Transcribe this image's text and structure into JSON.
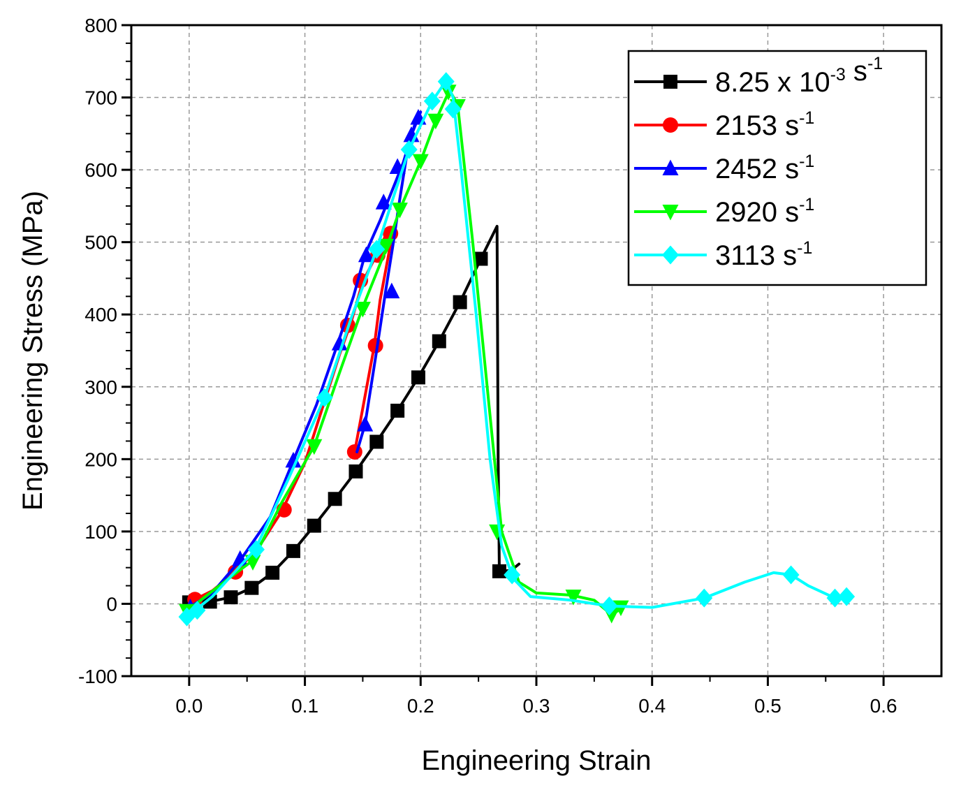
{
  "chart_data": {
    "type": "line",
    "xlabel": "Engineering Strain",
    "ylabel": "Engineering Stress (MPa)",
    "xlim": [
      -0.05,
      0.65
    ],
    "ylim": [
      -100,
      800
    ],
    "x_ticks": [
      0.0,
      0.1,
      0.2,
      0.3,
      0.4,
      0.5,
      0.6
    ],
    "x_tick_labels": [
      "0.0",
      "0.1",
      "0.2",
      "0.3",
      "0.4",
      "0.5",
      "0.6"
    ],
    "y_ticks": [
      -100,
      0,
      100,
      200,
      300,
      400,
      500,
      600,
      700,
      800
    ],
    "y_tick_labels": [
      "-100",
      "0",
      "100",
      "200",
      "300",
      "400",
      "500",
      "600",
      "700",
      "800"
    ],
    "grid": true,
    "legend_position": "top-right",
    "series": [
      {
        "name": "8.25 x 10",
        "name_sup": "-3",
        "name_suffix": " s",
        "name_suffix_sup": "-1",
        "color": "#000000",
        "marker": "square",
        "line": [
          [
            0.0,
            2
          ],
          [
            0.018,
            3
          ],
          [
            0.036,
            9
          ],
          [
            0.054,
            22
          ],
          [
            0.072,
            43
          ],
          [
            0.09,
            73
          ],
          [
            0.108,
            108
          ],
          [
            0.126,
            145
          ],
          [
            0.144,
            183
          ],
          [
            0.162,
            224
          ],
          [
            0.18,
            267
          ],
          [
            0.198,
            313
          ],
          [
            0.216,
            363
          ],
          [
            0.234,
            417
          ],
          [
            0.252,
            477
          ],
          [
            0.266,
            522
          ],
          [
            0.267,
            200
          ],
          [
            0.268,
            45
          ],
          [
            0.278,
            46
          ],
          [
            0.285,
            55
          ]
        ],
        "markers": [
          [
            0.0,
            2
          ],
          [
            0.018,
            3
          ],
          [
            0.036,
            9
          ],
          [
            0.054,
            22
          ],
          [
            0.072,
            43
          ],
          [
            0.09,
            73
          ],
          [
            0.108,
            108
          ],
          [
            0.126,
            145
          ],
          [
            0.144,
            183
          ],
          [
            0.162,
            224
          ],
          [
            0.18,
            267
          ],
          [
            0.198,
            313
          ],
          [
            0.216,
            363
          ],
          [
            0.234,
            417
          ],
          [
            0.252,
            477
          ],
          [
            0.268,
            45
          ]
        ]
      },
      {
        "name": "2153 s",
        "name_sup": "-1",
        "name_suffix": "",
        "name_suffix_sup": "",
        "color": "#ff0000",
        "marker": "circle",
        "line": [
          [
            0.0,
            0
          ],
          [
            0.005,
            6
          ],
          [
            0.02,
            18
          ],
          [
            0.04,
            44
          ],
          [
            0.06,
            78
          ],
          [
            0.08,
            128
          ],
          [
            0.1,
            195
          ],
          [
            0.115,
            270
          ],
          [
            0.13,
            345
          ],
          [
            0.14,
            390
          ],
          [
            0.15,
            445
          ],
          [
            0.162,
            483
          ],
          [
            0.17,
            510
          ],
          [
            0.176,
            518
          ],
          [
            0.172,
            480
          ],
          [
            0.165,
            420
          ],
          [
            0.16,
            357
          ],
          [
            0.15,
            270
          ],
          [
            0.143,
            210
          ]
        ],
        "markers": [
          [
            0.005,
            6
          ],
          [
            0.04,
            44
          ],
          [
            0.082,
            130
          ],
          [
            0.137,
            385
          ],
          [
            0.148,
            447
          ],
          [
            0.163,
            482
          ],
          [
            0.174,
            512
          ],
          [
            0.161,
            357
          ],
          [
            0.143,
            210
          ]
        ]
      },
      {
        "name": "2452 s",
        "name_sup": "-1",
        "name_suffix": "",
        "name_suffix_sup": "",
        "color": "#0000ff",
        "marker": "triangle-up",
        "line": [
          [
            0.0,
            -5
          ],
          [
            0.02,
            15
          ],
          [
            0.045,
            62
          ],
          [
            0.07,
            120
          ],
          [
            0.09,
            198
          ],
          [
            0.11,
            275
          ],
          [
            0.128,
            358
          ],
          [
            0.142,
            425
          ],
          [
            0.152,
            483
          ],
          [
            0.165,
            530
          ],
          [
            0.175,
            570
          ],
          [
            0.185,
            610
          ],
          [
            0.195,
            663
          ],
          [
            0.2,
            680
          ],
          [
            0.19,
            640
          ],
          [
            0.182,
            560
          ],
          [
            0.176,
            495
          ],
          [
            0.17,
            435
          ],
          [
            0.162,
            350
          ],
          [
            0.152,
            248
          ],
          [
            0.145,
            210
          ]
        ],
        "markers": [
          [
            0.001,
            -5
          ],
          [
            0.044,
            62
          ],
          [
            0.09,
            198
          ],
          [
            0.13,
            360
          ],
          [
            0.153,
            482
          ],
          [
            0.168,
            555
          ],
          [
            0.18,
            604
          ],
          [
            0.192,
            648
          ],
          [
            0.198,
            672
          ],
          [
            0.175,
            432
          ],
          [
            0.152,
            248
          ]
        ]
      },
      {
        "name": "2920 s",
        "name_sup": "-1",
        "name_suffix": "",
        "name_suffix_sup": "",
        "color": "#00ff00",
        "marker": "triangle-down",
        "line": [
          [
            -0.002,
            -10
          ],
          [
            0.03,
            30
          ],
          [
            0.055,
            60
          ],
          [
            0.08,
            140
          ],
          [
            0.108,
            218
          ],
          [
            0.13,
            320
          ],
          [
            0.15,
            410
          ],
          [
            0.17,
            490
          ],
          [
            0.182,
            545
          ],
          [
            0.2,
            612
          ],
          [
            0.213,
            668
          ],
          [
            0.225,
            710
          ],
          [
            0.232,
            690
          ],
          [
            0.245,
            500
          ],
          [
            0.26,
            260
          ],
          [
            0.27,
            100
          ],
          [
            0.285,
            30
          ],
          [
            0.3,
            15
          ],
          [
            0.33,
            12
          ],
          [
            0.35,
            5
          ],
          [
            0.365,
            -15
          ],
          [
            0.375,
            -5
          ]
        ],
        "markers": [
          [
            -0.002,
            -10
          ],
          [
            0.055,
            58
          ],
          [
            0.108,
            218
          ],
          [
            0.15,
            408
          ],
          [
            0.17,
            495
          ],
          [
            0.182,
            545
          ],
          [
            0.2,
            612
          ],
          [
            0.213,
            668
          ],
          [
            0.224,
            708
          ],
          [
            0.232,
            688
          ],
          [
            0.266,
            100
          ],
          [
            0.332,
            10
          ],
          [
            0.365,
            -15
          ],
          [
            0.373,
            -5
          ]
        ]
      },
      {
        "name": "3113 s",
        "name_sup": "-1",
        "name_suffix": "",
        "name_suffix_sup": "",
        "color": "#00ffff",
        "marker": "diamond",
        "line": [
          [
            -0.002,
            -18
          ],
          [
            0.02,
            10
          ],
          [
            0.04,
            45
          ],
          [
            0.057,
            75
          ],
          [
            0.085,
            170
          ],
          [
            0.117,
            285
          ],
          [
            0.14,
            395
          ],
          [
            0.162,
            490
          ],
          [
            0.175,
            555
          ],
          [
            0.19,
            628
          ],
          [
            0.21,
            695
          ],
          [
            0.222,
            723
          ],
          [
            0.228,
            700
          ],
          [
            0.235,
            600
          ],
          [
            0.248,
            400
          ],
          [
            0.26,
            200
          ],
          [
            0.27,
            80
          ],
          [
            0.28,
            35
          ],
          [
            0.295,
            10
          ],
          [
            0.33,
            5
          ],
          [
            0.363,
            -3
          ],
          [
            0.4,
            -5
          ],
          [
            0.445,
            8
          ],
          [
            0.48,
            30
          ],
          [
            0.505,
            43
          ],
          [
            0.52,
            40
          ],
          [
            0.535,
            25
          ],
          [
            0.558,
            8
          ],
          [
            0.568,
            10
          ]
        ],
        "markers": [
          [
            -0.002,
            -18
          ],
          [
            0.007,
            -9
          ],
          [
            0.058,
            75
          ],
          [
            0.117,
            285
          ],
          [
            0.162,
            490
          ],
          [
            0.19,
            628
          ],
          [
            0.21,
            695
          ],
          [
            0.222,
            722
          ],
          [
            0.228,
            684
          ],
          [
            0.279,
            40
          ],
          [
            0.363,
            -3
          ],
          [
            0.445,
            8
          ],
          [
            0.52,
            40
          ],
          [
            0.558,
            8
          ],
          [
            0.568,
            10
          ]
        ]
      }
    ]
  }
}
